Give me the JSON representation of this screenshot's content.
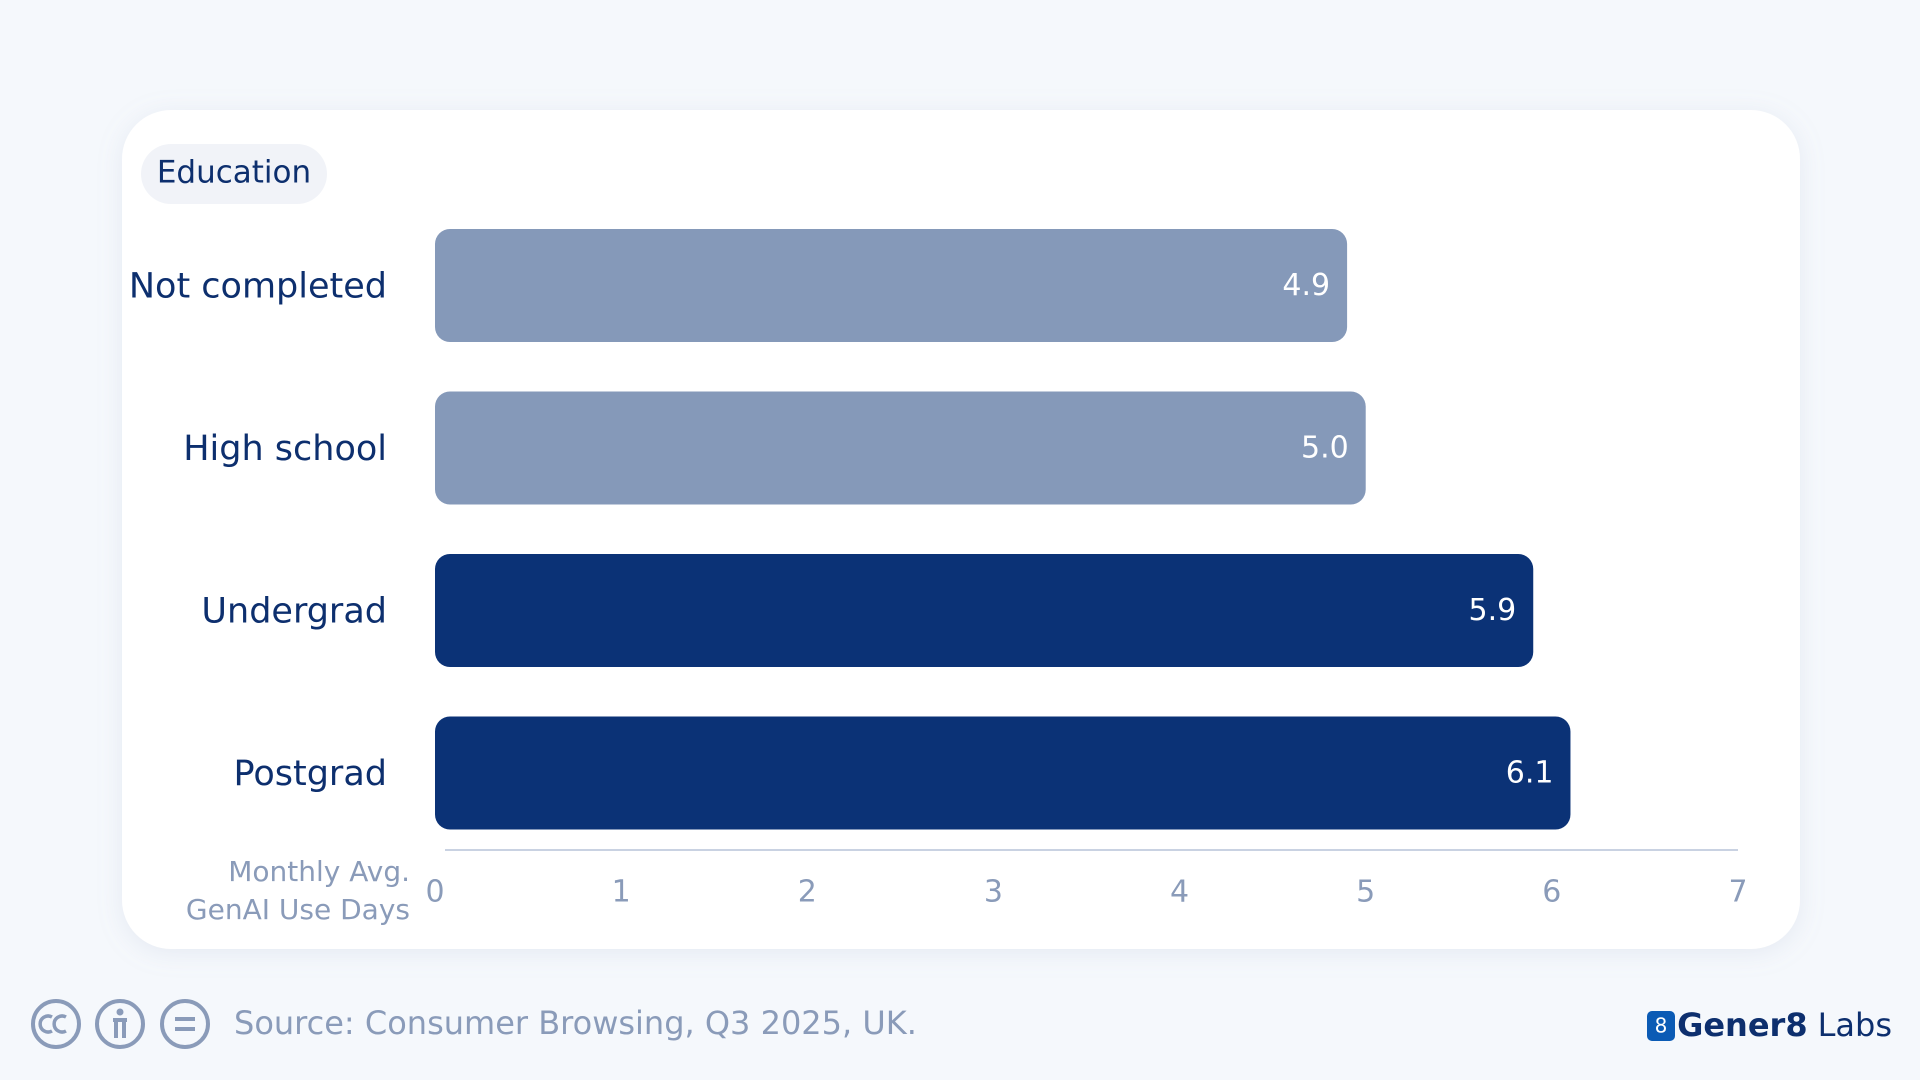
{
  "chart_data": {
    "type": "bar",
    "orientation": "horizontal",
    "title": "Education",
    "categories": [
      "Not completed",
      "High school",
      "Undergrad",
      "Postgrad"
    ],
    "values": [
      4.9,
      5.0,
      5.9,
      6.1
    ],
    "value_labels": [
      "4.9",
      "5.0",
      "5.9",
      "6.1"
    ],
    "colors": [
      "#8599b9",
      "#8599b9",
      "#0b3276",
      "#0b3276"
    ],
    "xlabel": [
      "Monthly Avg.",
      "GenAI Use Days"
    ],
    "xlim": [
      0,
      7
    ],
    "xticks": [
      0,
      1,
      2,
      3,
      4,
      5,
      6,
      7
    ]
  },
  "footer": {
    "source": "Source: Consumer Browsing, Q3 2025, UK.",
    "logo": "8",
    "brand": "Gener8",
    "brand_suffix": "Labs"
  }
}
